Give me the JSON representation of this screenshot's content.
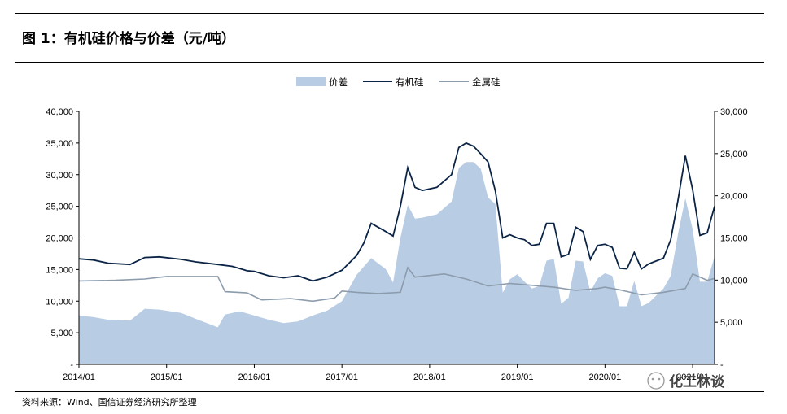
{
  "header": {
    "title": "图 1：有机硅价格与价差（元/吨）"
  },
  "footer": {
    "source": "资料来源：Wind、国信证券经济研究所整理"
  },
  "watermark": {
    "text": "化工林谈"
  },
  "colors": {
    "spread": "#b8cce4",
    "organic": "#0b2445",
    "metal": "#8c9cac"
  },
  "chart_data": {
    "type": "line",
    "legend_position": "top-center",
    "grid": false,
    "x_axis": {
      "type": "date",
      "start": "2014/01",
      "end": "2021/04",
      "tick_labels": [
        "2014/01",
        "2015/01",
        "2016/01",
        "2017/01",
        "2018/01",
        "2019/01",
        "2020/01",
        "2021/01"
      ]
    },
    "y_left": {
      "min": 0,
      "max": 40000,
      "tick_labels": [
        "-",
        "5,000",
        "10,000",
        "15,000",
        "20,000",
        "25,000",
        "30,000",
        "35,000",
        "40,000"
      ]
    },
    "y_right": {
      "min": 0,
      "max": 30000,
      "tick_labels": [
        "-",
        "5,000",
        "10,000",
        "15,000",
        "20,000",
        "25,000",
        "30,000"
      ]
    },
    "series": [
      {
        "name": "价差",
        "chart": "area",
        "axis": "right",
        "points": [
          [
            "2014/01",
            5800
          ],
          [
            "2014/03",
            5600
          ],
          [
            "2014/05",
            5300
          ],
          [
            "2014/08",
            5200
          ],
          [
            "2014/10",
            6600
          ],
          [
            "2014/12",
            6500
          ],
          [
            "2015/03",
            6100
          ],
          [
            "2015/05",
            5400
          ],
          [
            "2015/08",
            4400
          ],
          [
            "2015/09",
            5900
          ],
          [
            "2015/11",
            6300
          ],
          [
            "2016/01",
            5800
          ],
          [
            "2016/03",
            5300
          ],
          [
            "2016/05",
            4900
          ],
          [
            "2016/07",
            5100
          ],
          [
            "2016/09",
            5800
          ],
          [
            "2016/11",
            6400
          ],
          [
            "2017/01",
            7500
          ],
          [
            "2017/03",
            10600
          ],
          [
            "2017/05",
            12600
          ],
          [
            "2017/07",
            11300
          ],
          [
            "2017/08",
            9700
          ],
          [
            "2017/09",
            15000
          ],
          [
            "2017/10",
            18900
          ],
          [
            "2017/11",
            17300
          ],
          [
            "2017/12",
            17400
          ],
          [
            "2018/02",
            17800
          ],
          [
            "2018/04",
            19300
          ],
          [
            "2018/05",
            23300
          ],
          [
            "2018/06",
            24000
          ],
          [
            "2018/07",
            24000
          ],
          [
            "2018/08",
            23200
          ],
          [
            "2018/09",
            19800
          ],
          [
            "2018/10",
            19000
          ],
          [
            "2018/11",
            8500
          ],
          [
            "2018/12",
            10100
          ],
          [
            "2019/01",
            10700
          ],
          [
            "2019/02",
            9800
          ],
          [
            "2019/03",
            9000
          ],
          [
            "2019/04",
            9300
          ],
          [
            "2019/05",
            12300
          ],
          [
            "2019/06",
            12500
          ],
          [
            "2019/07",
            7200
          ],
          [
            "2019/08",
            7900
          ],
          [
            "2019/09",
            12300
          ],
          [
            "2019/10",
            12200
          ],
          [
            "2019/11",
            8600
          ],
          [
            "2019/12",
            10200
          ],
          [
            "2020/01",
            10800
          ],
          [
            "2020/02",
            10500
          ],
          [
            "2020/03",
            6900
          ],
          [
            "2020/04",
            6900
          ],
          [
            "2020/05",
            9900
          ],
          [
            "2020/06",
            6900
          ],
          [
            "2020/07",
            7300
          ],
          [
            "2020/09",
            9000
          ],
          [
            "2020/10",
            10500
          ],
          [
            "2020/11",
            15500
          ],
          [
            "2020/12",
            19700
          ],
          [
            "2021/01",
            16000
          ],
          [
            "2021/02",
            9800
          ],
          [
            "2021/03",
            9800
          ],
          [
            "2021/04",
            12800
          ]
        ]
      },
      {
        "name": "有机硅",
        "chart": "line",
        "axis": "left",
        "points": [
          [
            "2014/01",
            16700
          ],
          [
            "2014/03",
            16500
          ],
          [
            "2014/05",
            16000
          ],
          [
            "2014/08",
            15800
          ],
          [
            "2014/10",
            16900
          ],
          [
            "2014/12",
            17000
          ],
          [
            "2015/03",
            16600
          ],
          [
            "2015/05",
            16200
          ],
          [
            "2015/08",
            15800
          ],
          [
            "2015/10",
            15500
          ],
          [
            "2015/12",
            14800
          ],
          [
            "2016/01",
            14700
          ],
          [
            "2016/03",
            14000
          ],
          [
            "2016/05",
            13700
          ],
          [
            "2016/07",
            14000
          ],
          [
            "2016/09",
            13200
          ],
          [
            "2016/11",
            13800
          ],
          [
            "2017/01",
            14900
          ],
          [
            "2017/03",
            17200
          ],
          [
            "2017/04",
            19200
          ],
          [
            "2017/05",
            22300
          ],
          [
            "2017/07",
            21000
          ],
          [
            "2017/08",
            20300
          ],
          [
            "2017/09",
            25000
          ],
          [
            "2017/10",
            31100
          ],
          [
            "2017/11",
            28000
          ],
          [
            "2017/12",
            27500
          ],
          [
            "2018/02",
            28000
          ],
          [
            "2018/04",
            30000
          ],
          [
            "2018/05",
            34300
          ],
          [
            "2018/06",
            35000
          ],
          [
            "2018/07",
            34500
          ],
          [
            "2018/08",
            33300
          ],
          [
            "2018/09",
            32000
          ],
          [
            "2018/10",
            27400
          ],
          [
            "2018/11",
            20000
          ],
          [
            "2018/12",
            20500
          ],
          [
            "2019/01",
            20000
          ],
          [
            "2019/02",
            19700
          ],
          [
            "2019/03",
            18800
          ],
          [
            "2019/04",
            19000
          ],
          [
            "2019/05",
            22300
          ],
          [
            "2019/06",
            22300
          ],
          [
            "2019/07",
            17000
          ],
          [
            "2019/08",
            17400
          ],
          [
            "2019/09",
            21700
          ],
          [
            "2019/10",
            21000
          ],
          [
            "2019/11",
            16600
          ],
          [
            "2019/12",
            18800
          ],
          [
            "2020/01",
            19000
          ],
          [
            "2020/02",
            18500
          ],
          [
            "2020/03",
            15200
          ],
          [
            "2020/04",
            15100
          ],
          [
            "2020/05",
            17700
          ],
          [
            "2020/06",
            15100
          ],
          [
            "2020/07",
            15900
          ],
          [
            "2020/09",
            16800
          ],
          [
            "2020/10",
            19700
          ],
          [
            "2020/11",
            26000
          ],
          [
            "2020/12",
            33000
          ],
          [
            "2021/01",
            27600
          ],
          [
            "2021/02",
            20400
          ],
          [
            "2021/03",
            20800
          ],
          [
            "2021/04",
            25000
          ]
        ]
      },
      {
        "name": "金属硅",
        "chart": "line",
        "axis": "left",
        "points": [
          [
            "2014/01",
            13200
          ],
          [
            "2014/06",
            13300
          ],
          [
            "2014/10",
            13500
          ],
          [
            "2015/01",
            13900
          ],
          [
            "2015/08",
            13900
          ],
          [
            "2015/09",
            11500
          ],
          [
            "2015/12",
            11300
          ],
          [
            "2016/02",
            10200
          ],
          [
            "2016/06",
            10400
          ],
          [
            "2016/09",
            10000
          ],
          [
            "2016/12",
            10500
          ],
          [
            "2017/01",
            11600
          ],
          [
            "2017/03",
            11400
          ],
          [
            "2017/06",
            11200
          ],
          [
            "2017/09",
            11400
          ],
          [
            "2017/10",
            15300
          ],
          [
            "2017/11",
            13800
          ],
          [
            "2018/03",
            14300
          ],
          [
            "2018/06",
            13500
          ],
          [
            "2018/09",
            12400
          ],
          [
            "2018/12",
            12800
          ],
          [
            "2019/06",
            12200
          ],
          [
            "2019/09",
            11700
          ],
          [
            "2019/12",
            12000
          ],
          [
            "2020/01",
            12200
          ],
          [
            "2020/03",
            11800
          ],
          [
            "2020/06",
            11000
          ],
          [
            "2020/09",
            11400
          ],
          [
            "2020/12",
            12000
          ],
          [
            "2021/01",
            14300
          ],
          [
            "2021/03",
            13300
          ],
          [
            "2021/04",
            13600
          ]
        ]
      }
    ]
  }
}
